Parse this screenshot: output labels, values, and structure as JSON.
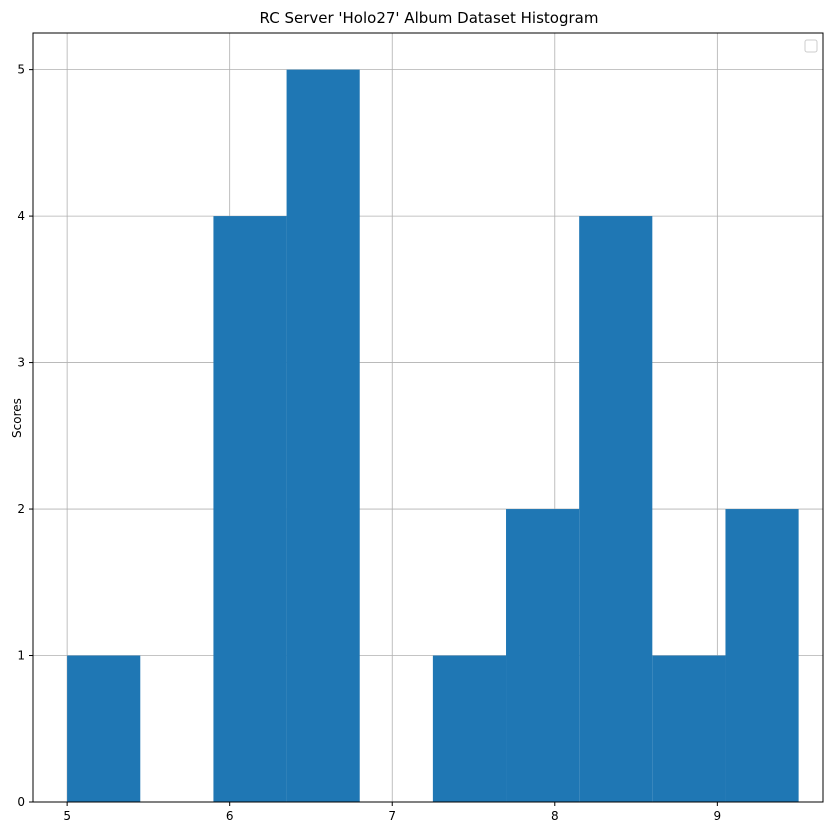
{
  "chart_data": {
    "type": "bar",
    "title": "RC Server 'Holo27' Album Dataset Histogram",
    "xlabel": "",
    "ylabel": "Scores",
    "xlim": [
      4.79,
      9.65
    ],
    "ylim": [
      0,
      5.25
    ],
    "x_ticks": [
      "5",
      "6",
      "7",
      "8",
      "9"
    ],
    "y_ticks": [
      "0",
      "1",
      "2",
      "3",
      "4",
      "5"
    ],
    "grid": true,
    "legend": "top-right (empty)",
    "bar_color": "#1f77b4",
    "bins": [
      {
        "x0": 5.0,
        "x1": 5.45,
        "count": 1
      },
      {
        "x0": 5.9,
        "x1": 6.35,
        "count": 4
      },
      {
        "x0": 6.35,
        "x1": 6.8,
        "count": 5
      },
      {
        "x0": 7.25,
        "x1": 7.7,
        "count": 1
      },
      {
        "x0": 7.7,
        "x1": 8.15,
        "count": 2
      },
      {
        "x0": 8.15,
        "x1": 8.6,
        "count": 4
      },
      {
        "x0": 8.6,
        "x1": 9.05,
        "count": 1
      },
      {
        "x0": 9.05,
        "x1": 9.5,
        "count": 2
      }
    ]
  }
}
